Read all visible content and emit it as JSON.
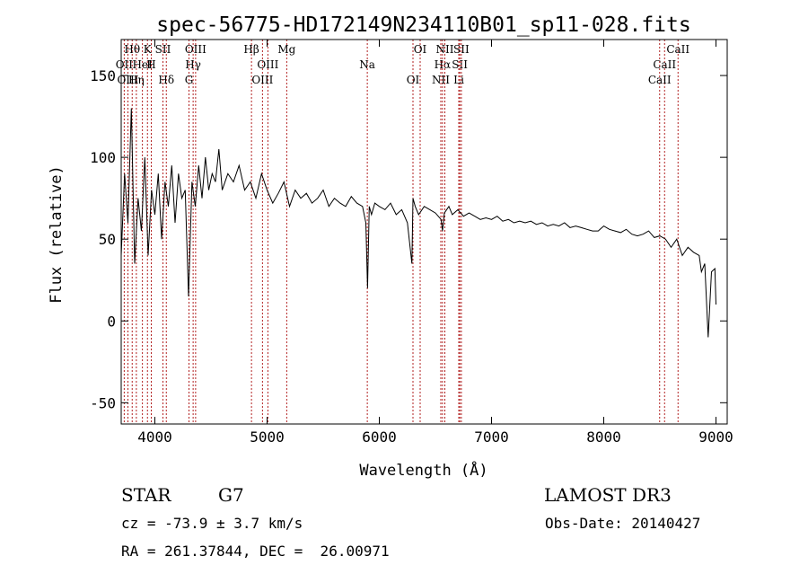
{
  "chart_data": {
    "type": "line",
    "title": "spec-56775-HD172149N234110B01_sp11-028.fits",
    "xlabel": "Wavelength (Å)",
    "ylabel": "Flux (relative)",
    "xlim": [
      3700,
      9100
    ],
    "ylim": [
      -63,
      172
    ],
    "xticks": [
      4000,
      5000,
      6000,
      7000,
      8000,
      9000
    ],
    "yticks": [
      -50,
      0,
      50,
      100,
      150
    ],
    "grid": false,
    "line_color": "#000000",
    "marker_color": "#b22222",
    "series": [
      {
        "x": [
          3700,
          3730,
          3760,
          3790,
          3820,
          3850,
          3880,
          3910,
          3940,
          3970,
          4000,
          4030,
          4060,
          4090,
          4120,
          4150,
          4180,
          4210,
          4240,
          4270,
          4300,
          4330,
          4360,
          4390,
          4420,
          4450,
          4480,
          4510,
          4540,
          4570,
          4600,
          4650,
          4700,
          4750,
          4800,
          4850,
          4900,
          4950,
          5000,
          5050,
          5100,
          5150,
          5200,
          5250,
          5300,
          5350,
          5400,
          5450,
          5500,
          5550,
          5600,
          5650,
          5700,
          5750,
          5800,
          5850,
          5880,
          5895,
          5910,
          5930,
          5960,
          6000,
          6050,
          6100,
          6150,
          6200,
          6250,
          6290,
          6300,
          6320,
          6350,
          6400,
          6450,
          6500,
          6550,
          6563,
          6580,
          6620,
          6650,
          6700,
          6750,
          6800,
          6850,
          6900,
          6950,
          7000,
          7050,
          7100,
          7150,
          7200,
          7250,
          7300,
          7350,
          7400,
          7450,
          7500,
          7550,
          7600,
          7650,
          7700,
          7750,
          7800,
          7850,
          7900,
          7950,
          8000,
          8050,
          8100,
          8150,
          8200,
          8250,
          8300,
          8350,
          8400,
          8450,
          8500,
          8550,
          8600,
          8650,
          8700,
          8750,
          8800,
          8850,
          8870,
          8900,
          8930,
          8960,
          8990,
          9000
        ],
        "values": [
          40,
          90,
          60,
          130,
          35,
          75,
          55,
          100,
          40,
          80,
          65,
          90,
          50,
          85,
          70,
          95,
          60,
          90,
          75,
          80,
          15,
          85,
          70,
          95,
          75,
          100,
          80,
          90,
          85,
          105,
          80,
          90,
          85,
          95,
          80,
          85,
          75,
          90,
          80,
          72,
          78,
          85,
          70,
          80,
          75,
          78,
          72,
          75,
          80,
          70,
          75,
          72,
          70,
          76,
          72,
          70,
          60,
          20,
          70,
          65,
          72,
          70,
          68,
          72,
          65,
          68,
          60,
          35,
          75,
          70,
          65,
          70,
          68,
          66,
          62,
          55,
          66,
          70,
          65,
          68,
          64,
          66,
          64,
          62,
          63,
          62,
          64,
          61,
          62,
          60,
          61,
          60,
          61,
          59,
          60,
          58,
          59,
          58,
          60,
          57,
          58,
          57,
          56,
          55,
          55,
          58,
          56,
          55,
          54,
          56,
          53,
          52,
          53,
          55,
          51,
          52,
          50,
          45,
          50,
          40,
          45,
          42,
          40,
          30,
          35,
          -10,
          30,
          32,
          10
        ]
      }
    ],
    "lines": [
      {
        "label": "Hθ",
        "wavelength": 3798
      },
      {
        "label": "OII",
        "wavelength": 3727
      },
      {
        "label": "OIII",
        "wavelength": 3760
      },
      {
        "label": "K",
        "wavelength": 3934
      },
      {
        "label": "HeI",
        "wavelength": 3889
      },
      {
        "label": "Hη",
        "wavelength": 3835
      },
      {
        "label": "SII",
        "wavelength": 4072
      },
      {
        "label": "H",
        "wavelength": 3968
      },
      {
        "label": "Hδ",
        "wavelength": 4102
      },
      {
        "label": "OIII",
        "wavelength": 4363
      },
      {
        "label": "Hγ",
        "wavelength": 4341
      },
      {
        "label": "G",
        "wavelength": 4304
      },
      {
        "label": "Hβ",
        "wavelength": 4861
      },
      {
        "label": "OIII",
        "wavelength": 5007
      },
      {
        "label": "OIII",
        "wavelength": 4959
      },
      {
        "label": "Mg",
        "wavelength": 5175
      },
      {
        "label": "Na",
        "wavelength": 5893
      },
      {
        "label": "OI",
        "wavelength": 6300
      },
      {
        "label": "OI",
        "wavelength": 6364
      },
      {
        "label": "Hα",
        "wavelength": 6563
      },
      {
        "label": "NII",
        "wavelength": 6548
      },
      {
        "label": "NII",
        "wavelength": 6584
      },
      {
        "label": "SII",
        "wavelength": 6717
      },
      {
        "label": "Li",
        "wavelength": 6708
      },
      {
        "label": "SII",
        "wavelength": 6731
      },
      {
        "label": "CaII",
        "wavelength": 8542
      },
      {
        "label": "CaII",
        "wavelength": 8498
      },
      {
        "label": "CaII",
        "wavelength": 8662
      }
    ]
  },
  "info": {
    "class_text": "STAR",
    "subclass_text": "G7",
    "survey_text": "LAMOST DR3",
    "cz_text": "cz = -73.9 ± 3.7 km/s",
    "obsdate_text": "Obs-Date: 20140427",
    "coords_text": "RA = 261.37844, DEC =  26.00971"
  }
}
